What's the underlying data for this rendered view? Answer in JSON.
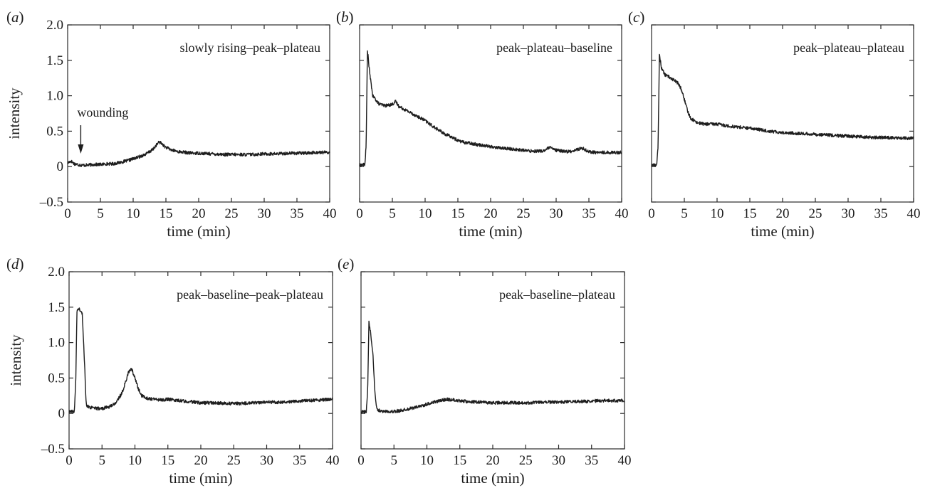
{
  "chart_data": [
    {
      "panel": "(a)",
      "type": "line",
      "annotation": "slowly rising–peak–plateau",
      "marker_label": "wounding",
      "marker_x": 2,
      "xlabel": "time (min)",
      "ylabel": "intensity",
      "xlim": [
        0,
        40
      ],
      "ylim": [
        -0.5,
        2.0
      ],
      "xticks": [
        "0",
        "5",
        "10",
        "15",
        "20",
        "25",
        "30",
        "35",
        "40"
      ],
      "yticks": [
        "–0.5",
        "0",
        "0.5",
        "1.0",
        "1.5",
        "2.0"
      ],
      "series": [
        {
          "x": [
            0,
            0.5,
            1,
            2,
            3,
            4,
            5,
            6,
            7,
            8,
            9,
            10,
            11,
            12,
            13,
            13.5,
            14,
            14.5,
            15,
            16,
            17,
            18,
            19,
            20,
            22,
            24,
            26,
            28,
            30,
            32,
            34,
            36,
            38,
            40
          ],
          "y": [
            0.05,
            0.08,
            0.04,
            0.02,
            0.02,
            0.03,
            0.03,
            0.04,
            0.04,
            0.06,
            0.08,
            0.11,
            0.14,
            0.18,
            0.24,
            0.3,
            0.35,
            0.31,
            0.27,
            0.23,
            0.21,
            0.2,
            0.19,
            0.19,
            0.18,
            0.17,
            0.17,
            0.17,
            0.18,
            0.18,
            0.19,
            0.19,
            0.2,
            0.2
          ]
        }
      ]
    },
    {
      "panel": "(b)",
      "type": "line",
      "annotation": "peak–plateau–baseline",
      "xlabel": "time (min)",
      "ylabel": "",
      "xlim": [
        0,
        40
      ],
      "ylim": [
        -0.5,
        2.0
      ],
      "xticks": [
        "0",
        "5",
        "10",
        "15",
        "20",
        "25",
        "30",
        "35",
        "40"
      ],
      "yticks": [],
      "series": [
        {
          "x": [
            0,
            0.8,
            1.0,
            1.2,
            1.5,
            2,
            3,
            4,
            5,
            5.5,
            6,
            7,
            8,
            9,
            10,
            11,
            12,
            13,
            14,
            15,
            16,
            17,
            18,
            19,
            20,
            21,
            22,
            24,
            26,
            28,
            29,
            30,
            32,
            34,
            35,
            36,
            38,
            40
          ],
          "y": [
            0.02,
            0.03,
            0.3,
            1.65,
            1.35,
            1.0,
            0.88,
            0.86,
            0.88,
            0.92,
            0.85,
            0.8,
            0.75,
            0.7,
            0.65,
            0.58,
            0.52,
            0.46,
            0.42,
            0.37,
            0.34,
            0.33,
            0.31,
            0.3,
            0.28,
            0.27,
            0.26,
            0.24,
            0.22,
            0.22,
            0.27,
            0.23,
            0.21,
            0.26,
            0.21,
            0.2,
            0.2,
            0.2
          ]
        }
      ]
    },
    {
      "panel": "(c)",
      "type": "line",
      "annotation": "peak–plateau–plateau",
      "xlabel": "time (min)",
      "ylabel": "",
      "xlim": [
        0,
        40
      ],
      "ylim": [
        -0.5,
        2.0
      ],
      "xticks": [
        "0",
        "5",
        "10",
        "15",
        "20",
        "25",
        "30",
        "35",
        "40"
      ],
      "yticks": [],
      "series": [
        {
          "x": [
            0,
            0.8,
            1.0,
            1.2,
            1.5,
            2,
            3,
            4,
            4.5,
            5,
            5.5,
            6,
            7,
            8,
            10,
            12,
            14,
            16,
            18,
            20,
            22,
            24,
            26,
            28,
            30,
            32,
            34,
            36,
            38,
            40
          ],
          "y": [
            0.02,
            0.03,
            0.3,
            1.58,
            1.4,
            1.3,
            1.25,
            1.18,
            1.1,
            0.95,
            0.78,
            0.68,
            0.62,
            0.6,
            0.6,
            0.57,
            0.55,
            0.53,
            0.5,
            0.48,
            0.47,
            0.46,
            0.45,
            0.44,
            0.43,
            0.42,
            0.41,
            0.41,
            0.4,
            0.4
          ]
        }
      ]
    },
    {
      "panel": "(d)",
      "type": "line",
      "annotation": "peak–baseline–peak–plateau",
      "xlabel": "time (min)",
      "ylabel": "intensity",
      "xlim": [
        0,
        40
      ],
      "ylim": [
        -0.5,
        2.0
      ],
      "xticks": [
        "0",
        "5",
        "10",
        "15",
        "20",
        "25",
        "30",
        "35",
        "40"
      ],
      "yticks": [
        "–0.5",
        "0",
        "0.5",
        "1.0",
        "1.5",
        "2.0"
      ],
      "series": [
        {
          "x": [
            0,
            0.8,
            1.0,
            1.2,
            1.5,
            2.0,
            2.4,
            2.6,
            3,
            4,
            5,
            6,
            7,
            8,
            8.5,
            9,
            9.5,
            10,
            10.5,
            11,
            12,
            13,
            14,
            15,
            16,
            18,
            20,
            22,
            24,
            26,
            28,
            30,
            32,
            34,
            36,
            38,
            40
          ],
          "y": [
            0.02,
            0.03,
            0.4,
            1.45,
            1.48,
            1.4,
            0.6,
            0.12,
            0.09,
            0.07,
            0.07,
            0.09,
            0.14,
            0.28,
            0.42,
            0.58,
            0.63,
            0.5,
            0.35,
            0.25,
            0.21,
            0.2,
            0.19,
            0.2,
            0.19,
            0.17,
            0.15,
            0.15,
            0.14,
            0.14,
            0.15,
            0.16,
            0.16,
            0.17,
            0.18,
            0.19,
            0.2
          ]
        }
      ]
    },
    {
      "panel": "(e)",
      "type": "line",
      "annotation": "peak–baseline–plateau",
      "xlabel": "time (min)",
      "ylabel": "",
      "xlim": [
        0,
        40
      ],
      "ylim": [
        -0.5,
        2.0
      ],
      "xticks": [
        "0",
        "5",
        "10",
        "15",
        "20",
        "25",
        "30",
        "35",
        "40"
      ],
      "yticks": [],
      "series": [
        {
          "x": [
            0,
            0.8,
            1.0,
            1.2,
            1.5,
            1.8,
            2.1,
            2.4,
            3,
            4,
            5,
            6,
            7,
            8,
            9,
            10,
            11,
            12,
            13,
            14,
            16,
            18,
            20,
            22,
            24,
            26,
            28,
            30,
            32,
            34,
            36,
            38,
            40
          ],
          "y": [
            0.02,
            0.03,
            0.3,
            1.3,
            1.1,
            0.85,
            0.3,
            0.06,
            0.03,
            0.03,
            0.03,
            0.04,
            0.06,
            0.08,
            0.1,
            0.13,
            0.16,
            0.18,
            0.2,
            0.19,
            0.17,
            0.16,
            0.15,
            0.15,
            0.15,
            0.15,
            0.16,
            0.16,
            0.17,
            0.17,
            0.18,
            0.18,
            0.18
          ]
        }
      ]
    }
  ]
}
